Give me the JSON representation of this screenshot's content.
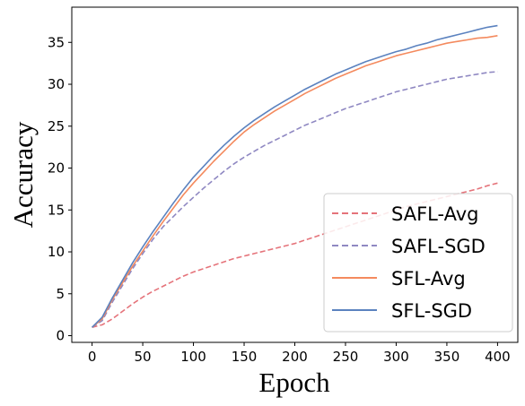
{
  "chart_data": {
    "type": "line",
    "title": "",
    "xlabel": "Epoch",
    "ylabel": "Accuracy",
    "xlim": [
      -20,
      420
    ],
    "ylim": [
      -0.8,
      39.2
    ],
    "xticks": [
      0,
      50,
      100,
      150,
      200,
      250,
      300,
      350,
      400
    ],
    "yticks": [
      0,
      5,
      10,
      15,
      20,
      25,
      30,
      35
    ],
    "grid": false,
    "legend_position": "bottom-right",
    "series": [
      {
        "name": "SAFL-Avg",
        "color": "#e5737a",
        "style": "dashed",
        "x": [
          0,
          10,
          20,
          30,
          40,
          50,
          60,
          70,
          80,
          90,
          100,
          110,
          120,
          130,
          140,
          150,
          160,
          170,
          180,
          190,
          200,
          210,
          220,
          230,
          240,
          250,
          260,
          270,
          280,
          290,
          300,
          310,
          320,
          330,
          340,
          350,
          360,
          370,
          380,
          390,
          400
        ],
        "values": [
          1.0,
          1.3,
          2.0,
          2.9,
          3.8,
          4.6,
          5.3,
          5.9,
          6.5,
          7.1,
          7.6,
          8.0,
          8.4,
          8.8,
          9.2,
          9.5,
          9.8,
          10.1,
          10.4,
          10.7,
          11.0,
          11.4,
          11.8,
          12.2,
          12.6,
          13.0,
          13.4,
          13.8,
          14.2,
          14.6,
          15.0,
          15.4,
          15.7,
          16.0,
          16.3,
          16.6,
          16.9,
          17.2,
          17.5,
          17.9,
          18.2
        ]
      },
      {
        "name": "SAFL-SGD",
        "color": "#8f88c2",
        "style": "dashed",
        "x": [
          0,
          10,
          20,
          30,
          40,
          50,
          60,
          70,
          80,
          90,
          100,
          110,
          120,
          130,
          140,
          150,
          160,
          170,
          180,
          190,
          200,
          210,
          220,
          230,
          240,
          250,
          260,
          270,
          280,
          290,
          300,
          310,
          320,
          330,
          340,
          350,
          360,
          370,
          380,
          390,
          400
        ],
        "values": [
          1.0,
          1.8,
          4.0,
          6.0,
          8.0,
          9.8,
          11.5,
          13.0,
          14.2,
          15.4,
          16.5,
          17.6,
          18.6,
          19.6,
          20.5,
          21.3,
          22.0,
          22.7,
          23.3,
          23.9,
          24.5,
          25.1,
          25.6,
          26.1,
          26.6,
          27.1,
          27.5,
          27.9,
          28.3,
          28.7,
          29.1,
          29.4,
          29.7,
          30.0,
          30.3,
          30.6,
          30.8,
          31.0,
          31.2,
          31.4,
          31.5
        ]
      },
      {
        "name": "SFL-Avg",
        "color": "#f48a5e",
        "style": "solid",
        "x": [
          0,
          10,
          20,
          30,
          40,
          50,
          60,
          70,
          80,
          90,
          100,
          110,
          120,
          130,
          140,
          150,
          160,
          170,
          180,
          190,
          200,
          210,
          220,
          230,
          240,
          250,
          260,
          270,
          280,
          290,
          300,
          310,
          320,
          330,
          340,
          350,
          360,
          370,
          380,
          390,
          400
        ],
        "values": [
          1.0,
          2.0,
          4.3,
          6.3,
          8.3,
          10.1,
          11.9,
          13.6,
          15.2,
          16.8,
          18.2,
          19.5,
          20.8,
          22.0,
          23.2,
          24.3,
          25.2,
          26.0,
          26.8,
          27.5,
          28.2,
          28.9,
          29.5,
          30.1,
          30.7,
          31.2,
          31.7,
          32.2,
          32.6,
          33.0,
          33.4,
          33.7,
          34.0,
          34.3,
          34.6,
          34.9,
          35.1,
          35.3,
          35.5,
          35.6,
          35.8
        ]
      },
      {
        "name": "SFL-SGD",
        "color": "#5b82bf",
        "style": "solid",
        "x": [
          0,
          10,
          20,
          30,
          40,
          50,
          60,
          70,
          80,
          90,
          100,
          110,
          120,
          130,
          140,
          150,
          160,
          170,
          180,
          190,
          200,
          210,
          220,
          230,
          240,
          250,
          260,
          270,
          280,
          290,
          300,
          310,
          320,
          330,
          340,
          350,
          360,
          370,
          380,
          390,
          400
        ],
        "values": [
          1.0,
          2.2,
          4.5,
          6.6,
          8.7,
          10.6,
          12.4,
          14.1,
          15.8,
          17.4,
          18.9,
          20.2,
          21.5,
          22.7,
          23.8,
          24.8,
          25.7,
          26.5,
          27.3,
          28.0,
          28.7,
          29.4,
          30.0,
          30.6,
          31.2,
          31.7,
          32.2,
          32.7,
          33.1,
          33.5,
          33.9,
          34.2,
          34.6,
          34.9,
          35.3,
          35.6,
          35.9,
          36.2,
          36.5,
          36.8,
          37.0
        ]
      }
    ]
  }
}
